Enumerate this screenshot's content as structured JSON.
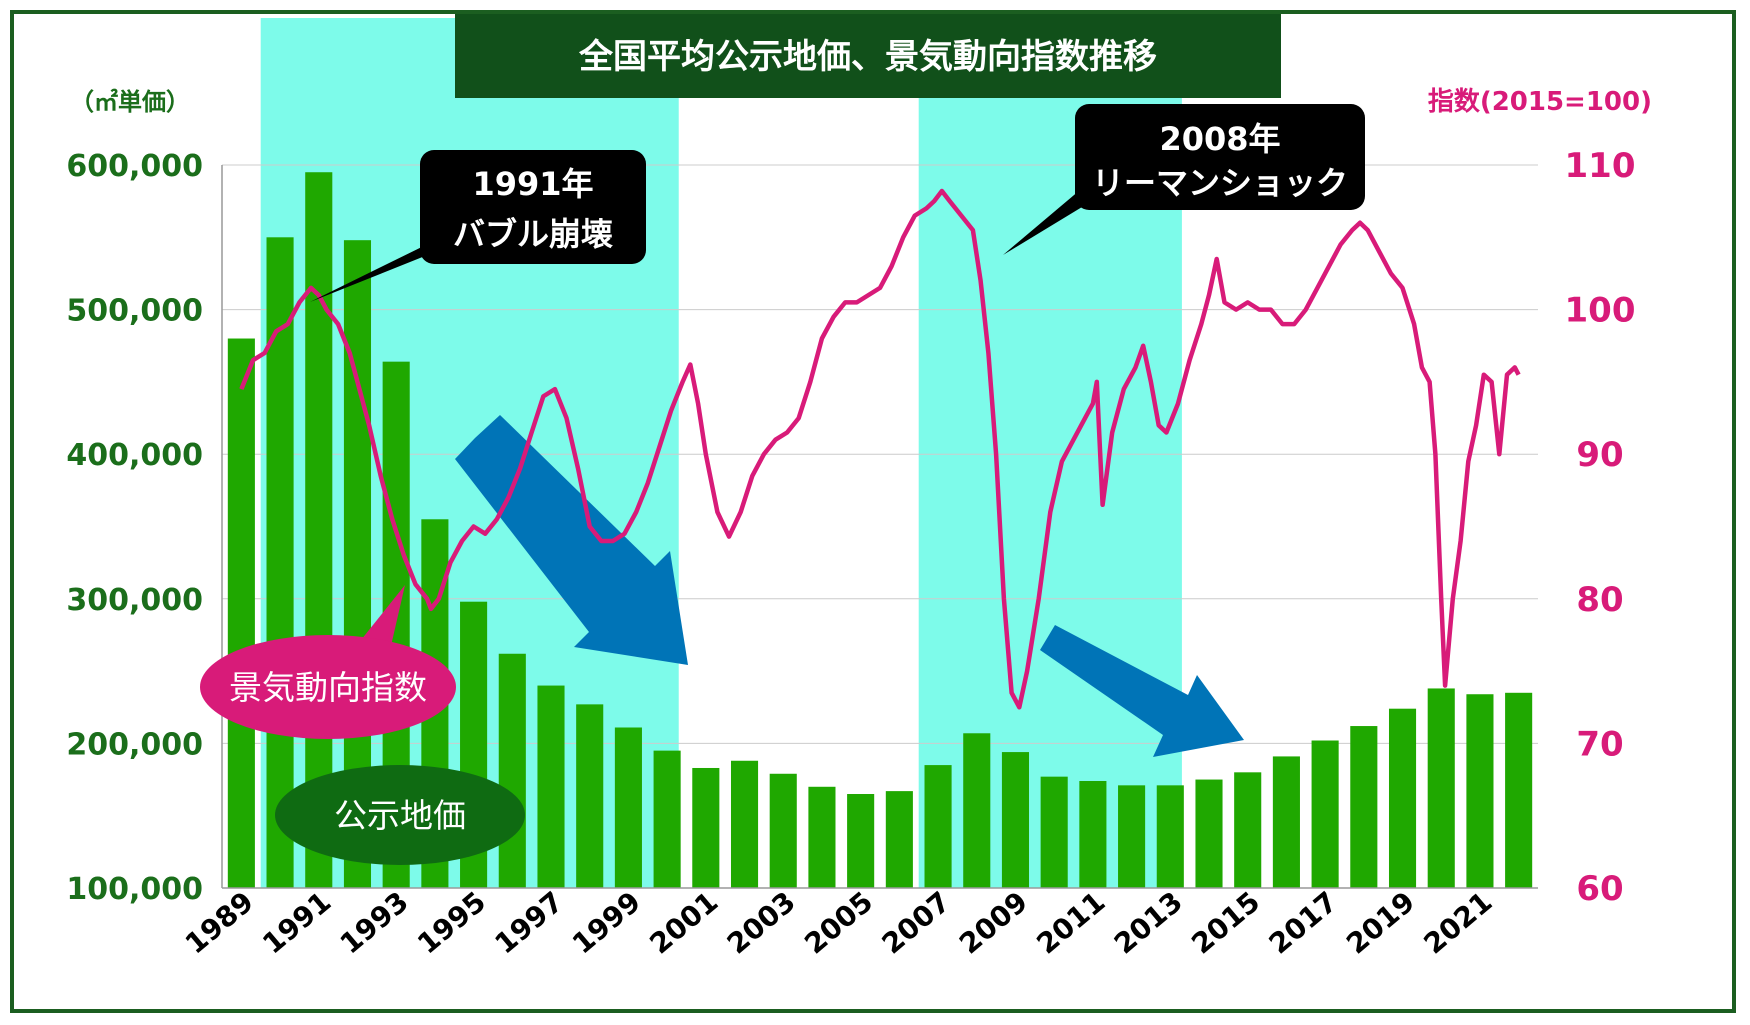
{
  "chart_data": {
    "type": "bar+line",
    "title": "全国平均公示地価、景気動向指数推移",
    "left_axis": {
      "label": "（㎡単価）",
      "ticks": [
        "100,000",
        "200,000",
        "300,000",
        "400,000",
        "500,000",
        "600,000"
      ],
      "range": [
        100000,
        600000
      ]
    },
    "right_axis": {
      "label": "指数(2015=100)",
      "ticks": [
        "60",
        "70",
        "80",
        "90",
        "100",
        "110"
      ],
      "range": [
        60,
        110
      ]
    },
    "x_tick_labels": [
      "1989",
      "1991",
      "1993",
      "1995",
      "1997",
      "1999",
      "2001",
      "2003",
      "2005",
      "2007",
      "2009",
      "2011",
      "2013",
      "2015",
      "2017",
      "2019",
      "2021"
    ],
    "bar_series": {
      "name": "公示地価",
      "color": "#1fa800",
      "years": [
        1989,
        1990,
        1991,
        1992,
        1993,
        1994,
        1995,
        1996,
        1997,
        1998,
        1999,
        2000,
        2001,
        2002,
        2003,
        2004,
        2005,
        2006,
        2007,
        2008,
        2009,
        2010,
        2011,
        2012,
        2013,
        2014,
        2015,
        2016,
        2017,
        2018,
        2019,
        2020,
        2021,
        2022
      ],
      "values": [
        480000,
        550000,
        595000,
        548000,
        464000,
        355000,
        298000,
        262000,
        240000,
        227000,
        211000,
        195000,
        183000,
        188000,
        179000,
        170000,
        165000,
        167000,
        185000,
        207000,
        194000,
        177000,
        174000,
        171000,
        171000,
        175000,
        180000,
        191000,
        202000,
        212000,
        224000,
        238000,
        234000,
        235000
      ]
    },
    "line_series": {
      "name": "景気動向指数",
      "color": "#d81b79",
      "points": [
        [
          1989.0,
          94.5
        ],
        [
          1989.3,
          96.5
        ],
        [
          1989.6,
          97.0
        ],
        [
          1989.9,
          98.5
        ],
        [
          1990.2,
          99.0
        ],
        [
          1990.5,
          100.5
        ],
        [
          1990.8,
          101.5
        ],
        [
          1991.0,
          101.0
        ],
        [
          1991.2,
          100.0
        ],
        [
          1991.5,
          99.0
        ],
        [
          1991.8,
          97.0
        ],
        [
          1992.0,
          95.0
        ],
        [
          1992.3,
          92.0
        ],
        [
          1992.6,
          88.5
        ],
        [
          1992.9,
          85.5
        ],
        [
          1993.2,
          83.0
        ],
        [
          1993.5,
          81.0
        ],
        [
          1993.8,
          80.0
        ],
        [
          1993.9,
          79.3
        ],
        [
          1994.1,
          80.0
        ],
        [
          1994.4,
          82.5
        ],
        [
          1994.7,
          84.0
        ],
        [
          1995.0,
          85.0
        ],
        [
          1995.3,
          84.5
        ],
        [
          1995.6,
          85.5
        ],
        [
          1995.9,
          87.0
        ],
        [
          1996.2,
          89.0
        ],
        [
          1996.5,
          91.5
        ],
        [
          1996.8,
          94.0
        ],
        [
          1997.1,
          94.5
        ],
        [
          1997.4,
          92.5
        ],
        [
          1997.7,
          89.0
        ],
        [
          1998.0,
          85.0
        ],
        [
          1998.3,
          84.0
        ],
        [
          1998.6,
          84.0
        ],
        [
          1998.9,
          84.5
        ],
        [
          1999.2,
          86.0
        ],
        [
          1999.5,
          88.0
        ],
        [
          1999.8,
          90.5
        ],
        [
          2000.1,
          93.0
        ],
        [
          2000.4,
          95.0
        ],
        [
          2000.6,
          96.2
        ],
        [
          2000.8,
          93.5
        ],
        [
          2001.0,
          90.0
        ],
        [
          2001.3,
          86.0
        ],
        [
          2001.6,
          84.3
        ],
        [
          2001.9,
          86.0
        ],
        [
          2002.2,
          88.5
        ],
        [
          2002.5,
          90.0
        ],
        [
          2002.8,
          91.0
        ],
        [
          2003.1,
          91.5
        ],
        [
          2003.4,
          92.5
        ],
        [
          2003.7,
          95.0
        ],
        [
          2004.0,
          98.0
        ],
        [
          2004.3,
          99.5
        ],
        [
          2004.6,
          100.5
        ],
        [
          2004.9,
          100.5
        ],
        [
          2005.2,
          101.0
        ],
        [
          2005.5,
          101.5
        ],
        [
          2005.8,
          103.0
        ],
        [
          2006.1,
          105.0
        ],
        [
          2006.4,
          106.5
        ],
        [
          2006.7,
          107.0
        ],
        [
          2006.9,
          107.5
        ],
        [
          2007.1,
          108.2
        ],
        [
          2007.3,
          107.5
        ],
        [
          2007.6,
          106.5
        ],
        [
          2007.9,
          105.5
        ],
        [
          2008.1,
          102.0
        ],
        [
          2008.3,
          97.0
        ],
        [
          2008.5,
          90.0
        ],
        [
          2008.7,
          80.0
        ],
        [
          2008.9,
          73.5
        ],
        [
          2009.1,
          72.5
        ],
        [
          2009.3,
          75.0
        ],
        [
          2009.6,
          80.0
        ],
        [
          2009.9,
          86.0
        ],
        [
          2010.2,
          89.5
        ],
        [
          2010.5,
          91.0
        ],
        [
          2010.8,
          92.5
        ],
        [
          2011.0,
          93.5
        ],
        [
          2011.1,
          95.0
        ],
        [
          2011.25,
          86.5
        ],
        [
          2011.5,
          91.5
        ],
        [
          2011.8,
          94.5
        ],
        [
          2012.1,
          96.0
        ],
        [
          2012.3,
          97.5
        ],
        [
          2012.5,
          95.0
        ],
        [
          2012.7,
          92.0
        ],
        [
          2012.9,
          91.5
        ],
        [
          2013.2,
          93.5
        ],
        [
          2013.5,
          96.5
        ],
        [
          2013.8,
          99.0
        ],
        [
          2014.0,
          101.0
        ],
        [
          2014.2,
          103.5
        ],
        [
          2014.4,
          100.5
        ],
        [
          2014.7,
          100.0
        ],
        [
          2015.0,
          100.5
        ],
        [
          2015.3,
          100.0
        ],
        [
          2015.6,
          100.0
        ],
        [
          2015.9,
          99.0
        ],
        [
          2016.2,
          99.0
        ],
        [
          2016.5,
          100.0
        ],
        [
          2016.8,
          101.5
        ],
        [
          2017.1,
          103.0
        ],
        [
          2017.4,
          104.5
        ],
        [
          2017.7,
          105.5
        ],
        [
          2017.9,
          106.0
        ],
        [
          2018.1,
          105.5
        ],
        [
          2018.4,
          104.0
        ],
        [
          2018.7,
          102.5
        ],
        [
          2019.0,
          101.5
        ],
        [
          2019.3,
          99.0
        ],
        [
          2019.5,
          96.0
        ],
        [
          2019.7,
          95.0
        ],
        [
          2019.85,
          90.0
        ],
        [
          2020.0,
          80.0
        ],
        [
          2020.1,
          74.0
        ],
        [
          2020.3,
          80.0
        ],
        [
          2020.5,
          84.0
        ],
        [
          2020.7,
          89.5
        ],
        [
          2020.9,
          92.0
        ],
        [
          2021.1,
          95.5
        ],
        [
          2021.3,
          95.0
        ],
        [
          2021.5,
          90.0
        ],
        [
          2021.7,
          95.5
        ],
        [
          2021.9,
          96.0
        ],
        [
          2022.0,
          95.5
        ]
      ]
    },
    "shaded_periods": [
      [
        1990.0,
        2000.8
      ],
      [
        2007.0,
        2013.8
      ]
    ],
    "shade_color": "#7dfbea",
    "annotations": {
      "bubble": [
        "1991年",
        "バブル崩壊"
      ],
      "lehman": [
        "2008年",
        "リーマンショック"
      ],
      "index_label": "景気動向指数",
      "land_label": "公示地価"
    },
    "colors": {
      "title_bg": "#11501a",
      "label_index_bg": "#d81b79",
      "label_land_bg": "#0f6b12",
      "arrow": "#0074b7",
      "grid": "#cccccc",
      "border": "#1b5e20"
    }
  }
}
